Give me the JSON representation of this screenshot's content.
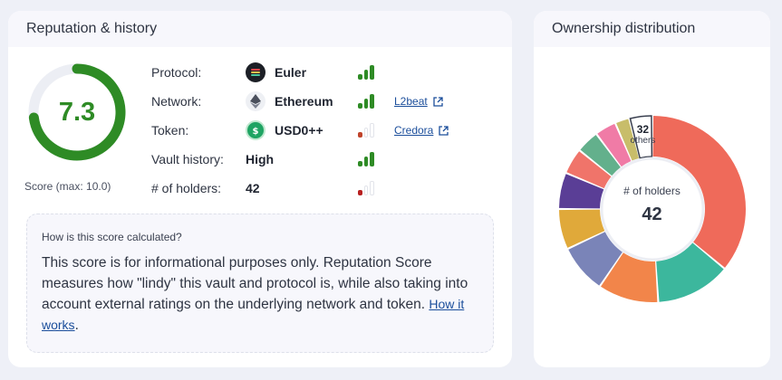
{
  "reputation": {
    "title": "Reputation & history",
    "score": "7.3",
    "score_fraction": 0.73,
    "score_caption": "Score (max: 10.0)",
    "rows": [
      {
        "label": "Protocol:",
        "value": "Euler",
        "icon": "euler-logo-icon",
        "bars_level": 3,
        "bar_color": "#2e8b25"
      },
      {
        "label": "Network:",
        "value": "Ethereum",
        "icon": "ethereum-logo-icon",
        "bars_level": 3,
        "bar_color": "#2e8b25",
        "link": "L2beat"
      },
      {
        "label": "Token:",
        "value": "USD0++",
        "icon": "usd0-token-icon",
        "bars_level": 1,
        "bar_color": "#c0442b",
        "link": "Credora"
      },
      {
        "label": "Vault history:",
        "value": "High",
        "bars_level": 3,
        "bar_color": "#2e8b25"
      },
      {
        "label": "# of holders:",
        "value": "42",
        "bars_level": 1,
        "bar_color": "#b82020"
      }
    ],
    "explain": {
      "question": "How is this score calculated?",
      "text": "This score is for informational purposes only. Reputation Score measures how \"lindy\" this vault and protocol is, while also taking into account external ratings on the underlying network and token.",
      "link": "How it works",
      "after_link": "."
    }
  },
  "ownership": {
    "title": "Ownership distribution",
    "center_label": "# of holders",
    "center_value": "42",
    "others_count": "32",
    "others_label": "others",
    "slices": [
      {
        "color": "#ef6a5a",
        "share": 0.36
      },
      {
        "color": "#3cb79d",
        "share": 0.13
      },
      {
        "color": "#f2854a",
        "share": 0.105
      },
      {
        "color": "#7a84b8",
        "share": 0.085
      },
      {
        "color": "#e0a93a",
        "share": 0.07
      },
      {
        "color": "#5a3e96",
        "share": 0.063
      },
      {
        "color": "#f0746a",
        "share": 0.045
      },
      {
        "color": "#63b08c",
        "share": 0.04
      },
      {
        "color": "#f07ba6",
        "share": 0.037
      },
      {
        "color": "#c8bd6a",
        "share": 0.025
      },
      {
        "color": "#ffffff",
        "share": 0.04,
        "others": true
      }
    ]
  }
}
